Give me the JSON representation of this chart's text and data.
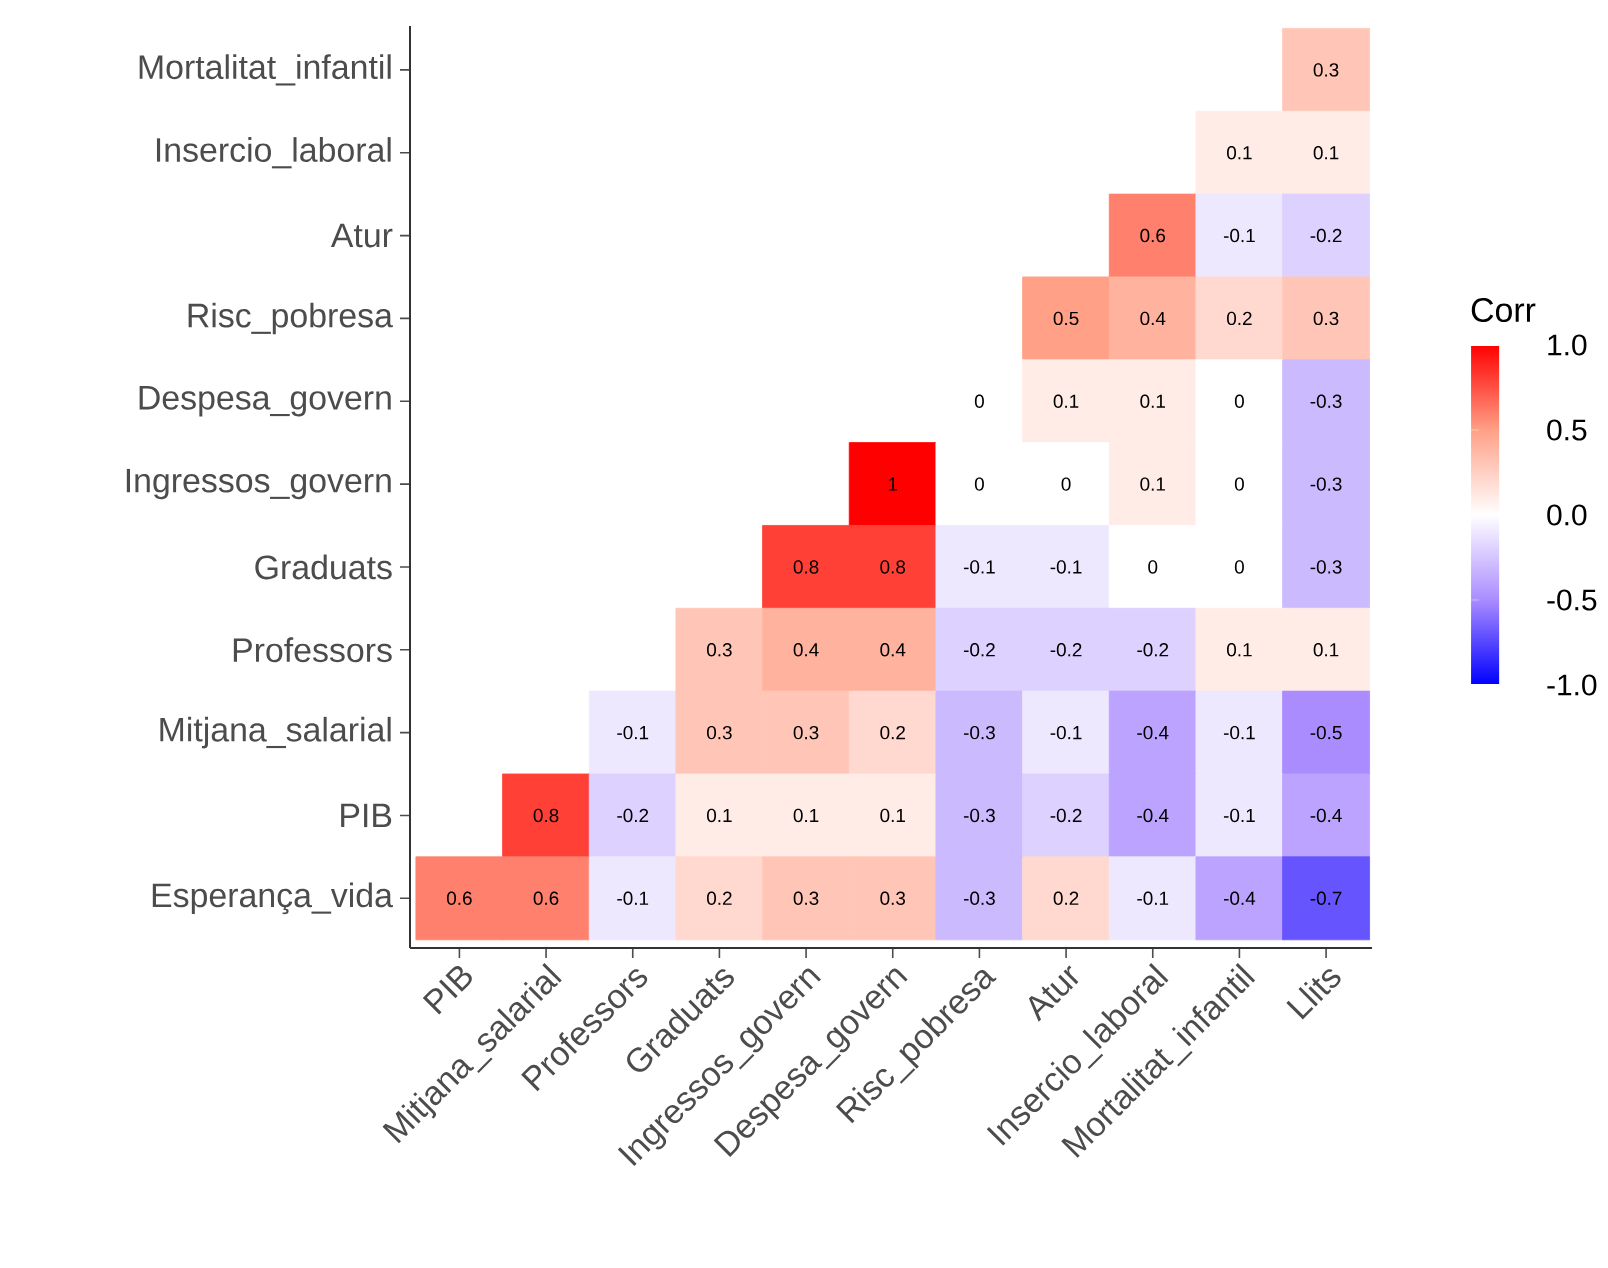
{
  "chart_data": {
    "type": "heatmap",
    "clabel": "Corr",
    "categories": [
      "PIB",
      "Mitjana_salarial",
      "Professors",
      "Graduats",
      "Ingressos_govern",
      "Despesa_govern",
      "Risc_pobresa",
      "Atur",
      "Insercio_laboral",
      "Mortalitat_infantil",
      "Llits"
    ],
    "y_categories": [
      "Mortalitat_infantil",
      "Insercio_laboral",
      "Atur",
      "Risc_pobresa",
      "Despesa_govern",
      "Ingressos_govern",
      "Graduats",
      "Professors",
      "Mitjana_salarial",
      "PIB",
      "Esperança_vida"
    ],
    "cells": [
      [
        null,
        null,
        null,
        null,
        null,
        null,
        null,
        null,
        null,
        null,
        0.3
      ],
      [
        null,
        null,
        null,
        null,
        null,
        null,
        null,
        null,
        null,
        0.1,
        0.1
      ],
      [
        null,
        null,
        null,
        null,
        null,
        null,
        null,
        null,
        0.6,
        -0.1,
        -0.2
      ],
      [
        null,
        null,
        null,
        null,
        null,
        null,
        null,
        0.5,
        0.4,
        0.2,
        0.3
      ],
      [
        null,
        null,
        null,
        null,
        null,
        null,
        0,
        0.1,
        0.1,
        0,
        -0.3
      ],
      [
        null,
        null,
        null,
        null,
        null,
        1,
        0,
        0,
        0.1,
        0,
        -0.3
      ],
      [
        null,
        null,
        null,
        null,
        0.8,
        0.8,
        -0.1,
        -0.1,
        0,
        0,
        -0.3
      ],
      [
        null,
        null,
        null,
        0.3,
        0.4,
        0.4,
        -0.2,
        -0.2,
        -0.2,
        0.1,
        0.1
      ],
      [
        null,
        null,
        -0.1,
        0.3,
        0.3,
        0.2,
        -0.3,
        -0.1,
        -0.4,
        -0.1,
        -0.5
      ],
      [
        null,
        0.8,
        -0.2,
        0.1,
        0.1,
        0.1,
        -0.3,
        -0.2,
        -0.4,
        -0.1,
        -0.4
      ],
      [
        0.6,
        0.6,
        -0.1,
        0.2,
        0.3,
        0.3,
        -0.3,
        0.2,
        -0.1,
        -0.4,
        -0.7
      ]
    ],
    "data_labels": true,
    "clim": [
      -1,
      1
    ],
    "cticks": [
      {
        "value": -1,
        "label": "-1.0"
      },
      {
        "value": -0.5,
        "label": "-0.5"
      },
      {
        "value": 0,
        "label": "0.0"
      },
      {
        "value": 0.5,
        "label": "0.5"
      },
      {
        "value": 1,
        "label": "1.0"
      }
    ]
  }
}
